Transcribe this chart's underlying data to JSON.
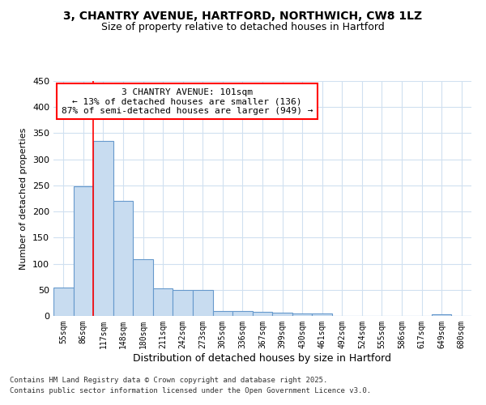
{
  "title1": "3, CHANTRY AVENUE, HARTFORD, NORTHWICH, CW8 1LZ",
  "title2": "Size of property relative to detached houses in Hartford",
  "xlabel": "Distribution of detached houses by size in Hartford",
  "ylabel": "Number of detached properties",
  "footnote1": "Contains HM Land Registry data © Crown copyright and database right 2025.",
  "footnote2": "Contains public sector information licensed under the Open Government Licence v3.0.",
  "annotation_line1": "3 CHANTRY AVENUE: 101sqm",
  "annotation_line2": "← 13% of detached houses are smaller (136)",
  "annotation_line3": "87% of semi-detached houses are larger (949) →",
  "bin_labels": [
    "55sqm",
    "86sqm",
    "117sqm",
    "148sqm",
    "180sqm",
    "211sqm",
    "242sqm",
    "273sqm",
    "305sqm",
    "336sqm",
    "367sqm",
    "399sqm",
    "430sqm",
    "461sqm",
    "492sqm",
    "524sqm",
    "555sqm",
    "586sqm",
    "617sqm",
    "649sqm",
    "680sqm"
  ],
  "bar_values": [
    54,
    248,
    335,
    221,
    108,
    53,
    50,
    49,
    10,
    10,
    7,
    6,
    4,
    4,
    0,
    0,
    0,
    0,
    0,
    3,
    0
  ],
  "bar_color": "#c8dcf0",
  "bar_edge_color": "#6699cc",
  "red_line_x": 1.5,
  "ylim": [
    0,
    450
  ],
  "yticks": [
    0,
    50,
    100,
    150,
    200,
    250,
    300,
    350,
    400,
    450
  ],
  "bg_color": "#ffffff",
  "grid_color": "#d0e0f0",
  "bar_width": 1.0
}
